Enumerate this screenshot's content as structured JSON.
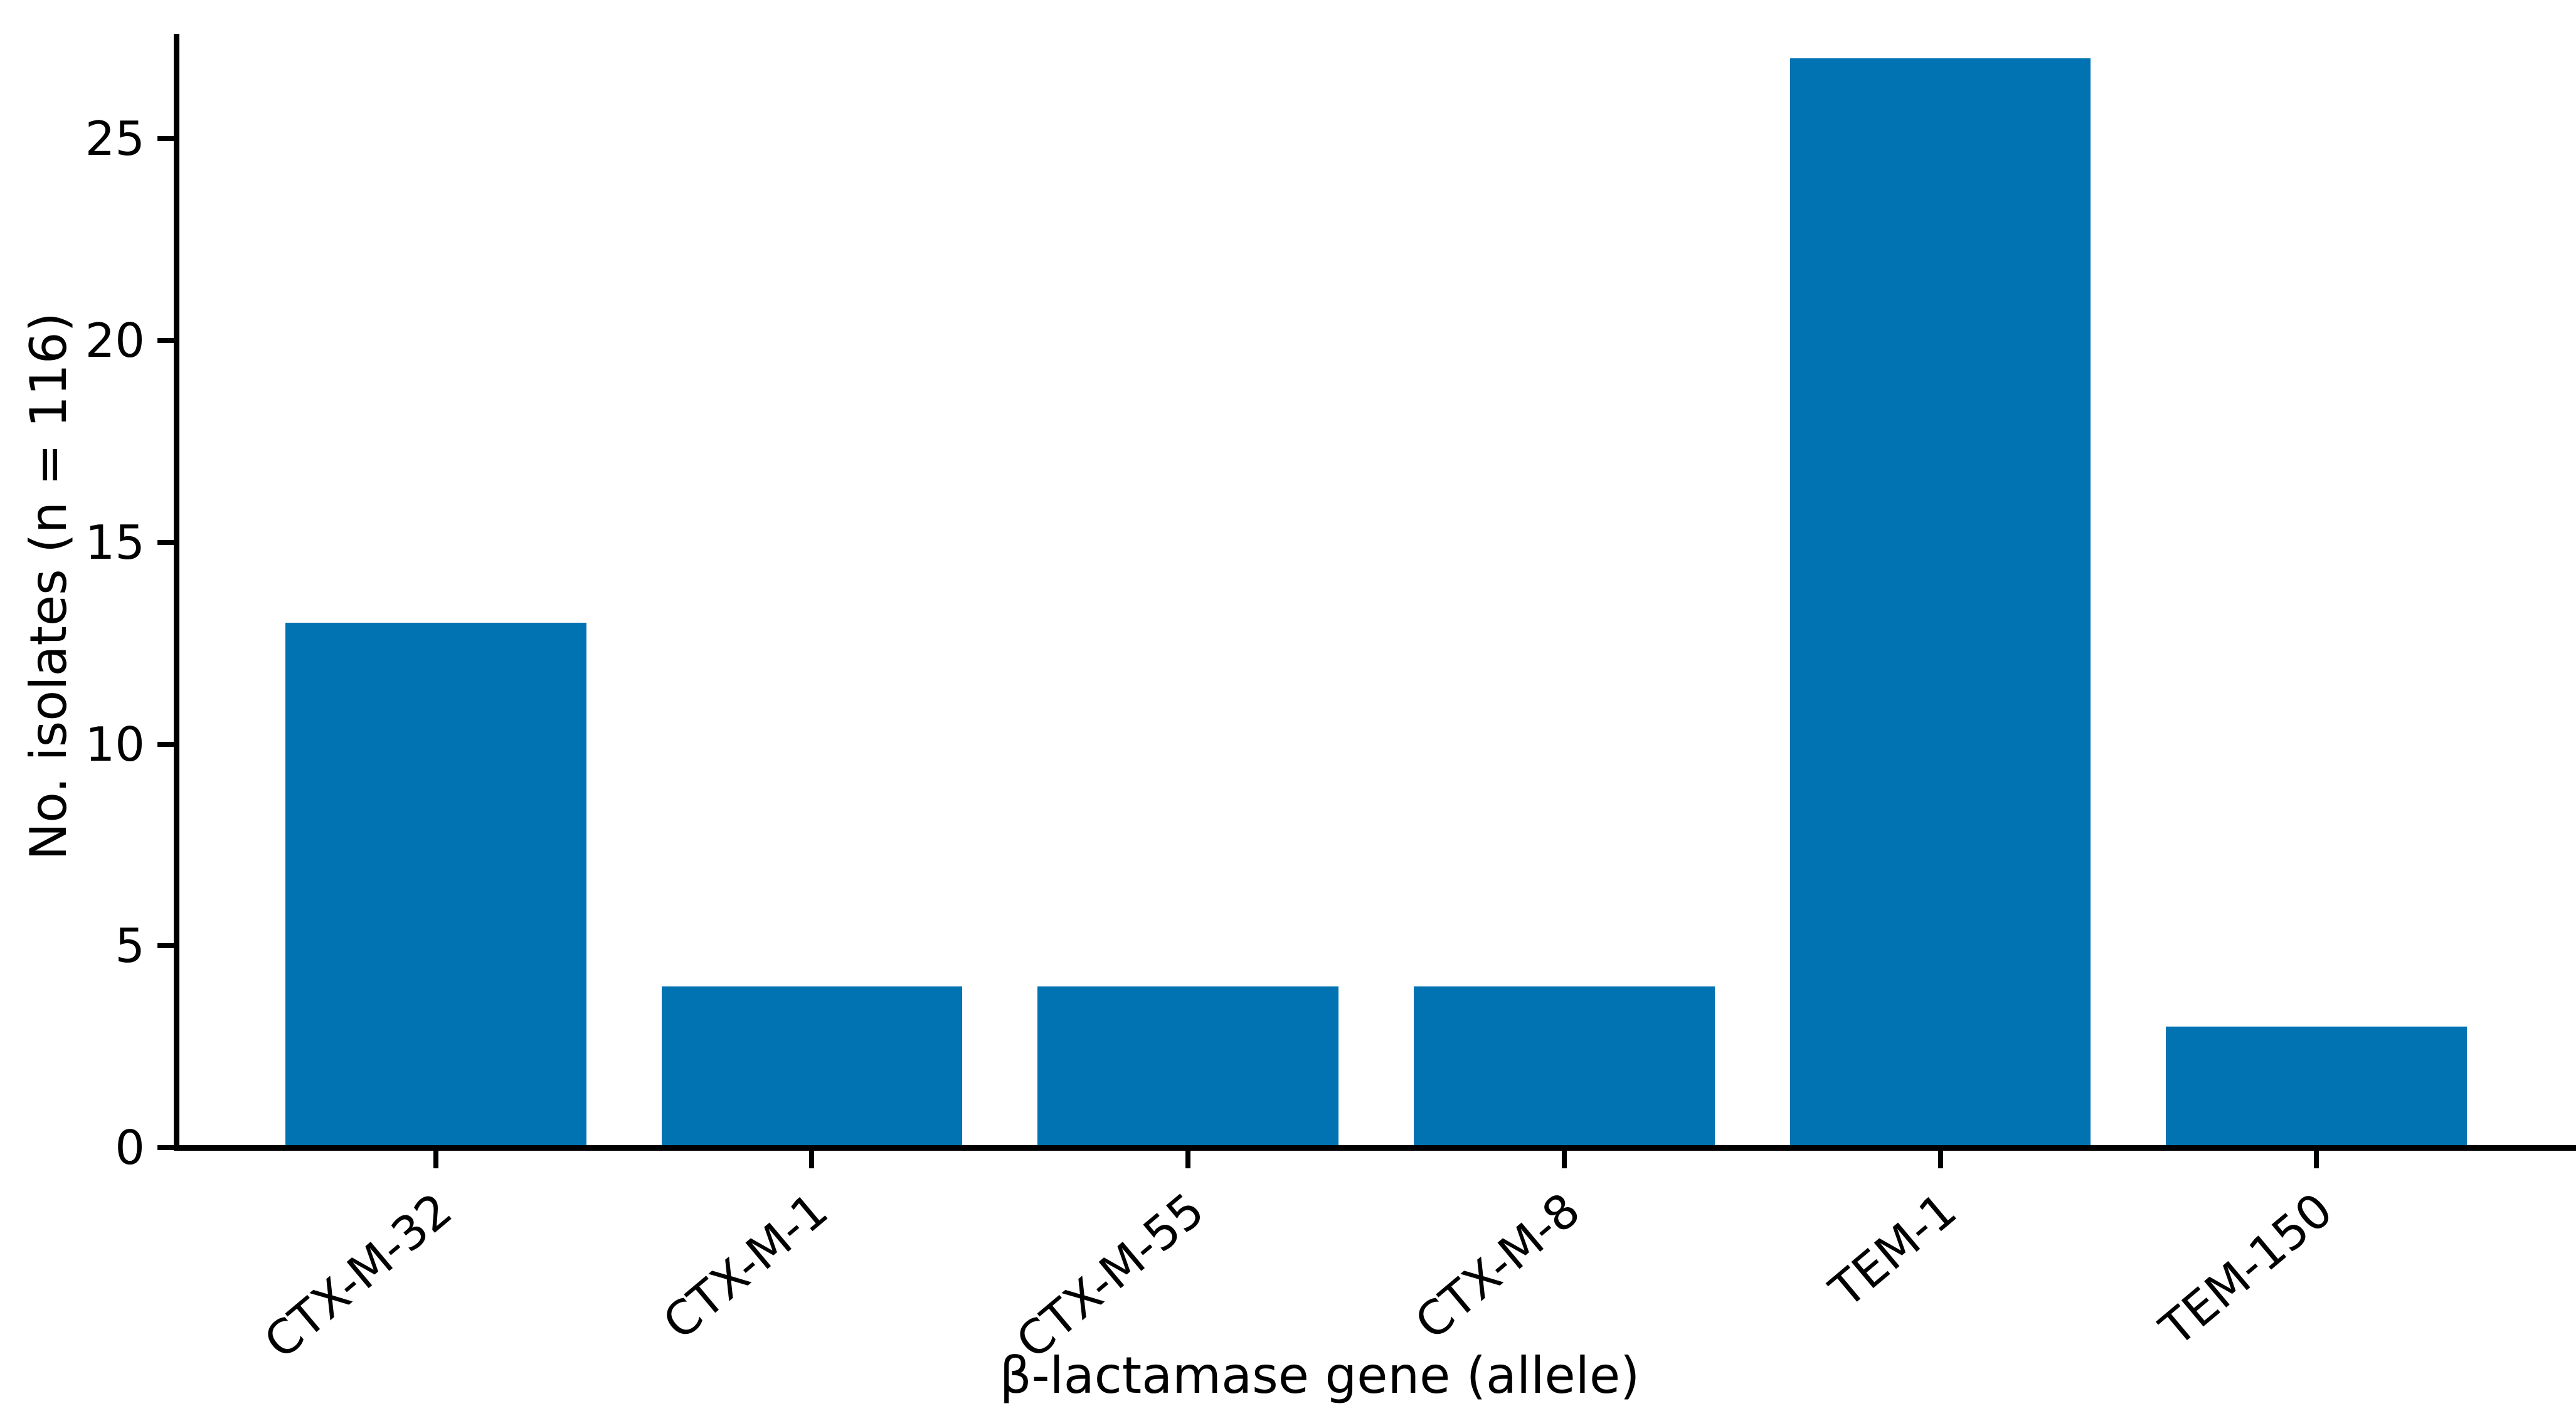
{
  "chart_data": {
    "type": "bar",
    "title": "",
    "categories": [
      "CTX-M-32",
      "CTX-M-1",
      "CTX-M-55",
      "CTX-M-8",
      "TEM-1",
      "TEM-150"
    ],
    "values": [
      13,
      4,
      4,
      4,
      27,
      3
    ],
    "xlabel": "β-lactamase gene (allele)",
    "ylabel": "No. isolates (n = 116)",
    "yticks": [
      0,
      5,
      10,
      15,
      20,
      25
    ],
    "ylim": [
      0,
      27.6
    ],
    "bar_color": "#0173b2",
    "axis_color": "#000000",
    "grid": false,
    "legend": "none",
    "xtick_rotation_deg": 40
  }
}
